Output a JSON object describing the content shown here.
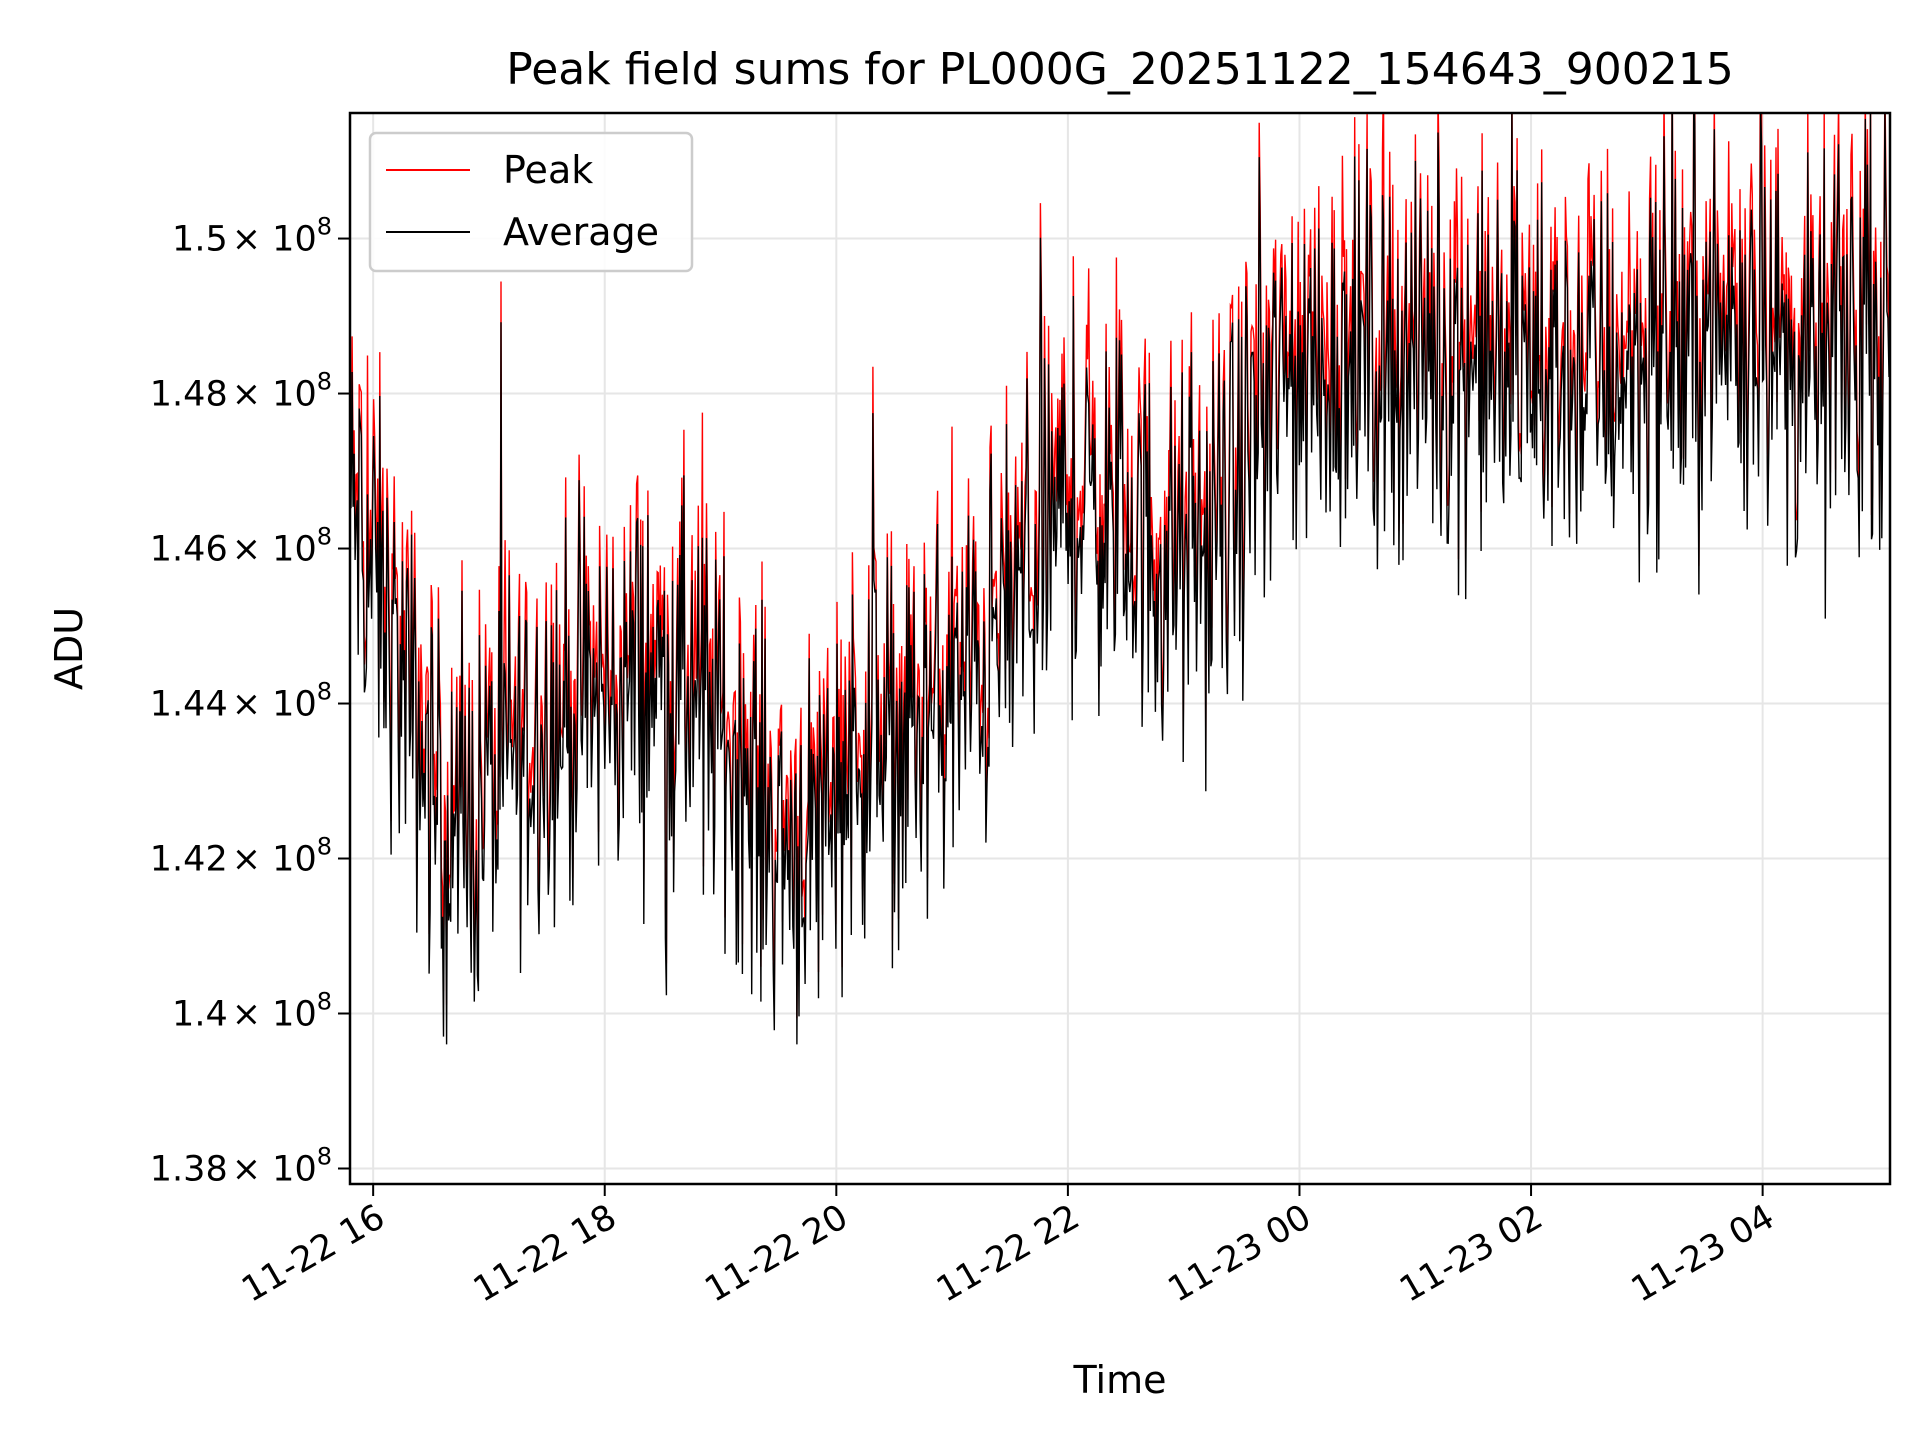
{
  "chart_data": {
    "type": "line",
    "title": "Peak field sums for PL000G_20251122_154643_900215",
    "xlabel": "Time",
    "ylabel": "ADU",
    "x_unit": "hours since 11-22 00:00",
    "xlim": [
      15.8,
      29.1
    ],
    "ylim": [
      137800000,
      151620000
    ],
    "x_ticks": [
      {
        "value": 16,
        "label": "11-22 16"
      },
      {
        "value": 18,
        "label": "11-22 18"
      },
      {
        "value": 20,
        "label": "11-22 20"
      },
      {
        "value": 22,
        "label": "11-22 22"
      },
      {
        "value": 24,
        "label": "11-23 00"
      },
      {
        "value": 26,
        "label": "11-23 02"
      },
      {
        "value": 28,
        "label": "11-23 04"
      }
    ],
    "y_ticks": [
      {
        "value": 138000000,
        "mantissa": "1.38",
        "exp": "8"
      },
      {
        "value": 140000000,
        "mantissa": "1.4",
        "exp": "8"
      },
      {
        "value": 142000000,
        "mantissa": "1.42",
        "exp": "8"
      },
      {
        "value": 144000000,
        "mantissa": "1.44",
        "exp": "8"
      },
      {
        "value": 146000000,
        "mantissa": "1.46",
        "exp": "8"
      },
      {
        "value": 148000000,
        "mantissa": "1.48",
        "exp": "8"
      },
      {
        "value": 150000000,
        "mantissa": "1.5",
        "exp": "8"
      }
    ],
    "tick_multiplier": "× 10",
    "grid": true,
    "legend_position": "top-left",
    "series": [
      {
        "name": "Peak",
        "color": "#ff0000",
        "x": [
          15.8,
          16.0,
          16.2,
          16.4,
          16.6,
          16.8,
          17.0,
          17.2,
          17.4,
          17.6,
          17.8,
          18.0,
          18.2,
          18.4,
          18.6,
          18.8,
          19.0,
          19.2,
          19.4,
          19.6,
          19.8,
          20.0,
          20.2,
          20.4,
          20.6,
          20.8,
          21.0,
          21.2,
          21.4,
          21.6,
          21.8,
          22.0,
          22.2,
          22.4,
          22.6,
          22.8,
          23.0,
          23.2,
          23.4,
          23.6,
          23.8,
          24.0,
          24.2,
          24.4,
          24.6,
          24.8,
          25.0,
          25.2,
          25.4,
          25.6,
          25.8,
          26.0,
          26.2,
          26.4,
          26.6,
          26.8,
          27.0,
          27.2,
          27.4,
          27.6,
          27.8,
          28.0,
          28.2,
          28.4,
          28.6,
          28.8,
          29.0,
          29.1
        ],
        "values": [
          146800000,
          145900000,
          144800000,
          143700000,
          142700000,
          142500000,
          143200000,
          143600000,
          143900000,
          144100000,
          144200000,
          144300000,
          144500000,
          144600000,
          144500000,
          144300000,
          143900000,
          143400000,
          142700000,
          142400000,
          142600000,
          143300000,
          143700000,
          143800000,
          143800000,
          144000000,
          144300000,
          144600000,
          145100000,
          145800000,
          146400000,
          146800000,
          146800000,
          146600000,
          146400000,
          146100000,
          146000000,
          146200000,
          146700000,
          147600000,
          148200000,
          148500000,
          148600000,
          148700000,
          148700000,
          148700000,
          148700000,
          148700000,
          148700000,
          148600000,
          148600000,
          148600000,
          148500000,
          148500000,
          148500000,
          148600000,
          148700000,
          148800000,
          148900000,
          149000000,
          149200000,
          149600000,
          148600000,
          148500000,
          148800000,
          149000000,
          149100000,
          149300000
        ]
      },
      {
        "name": "Average",
        "color": "#000000",
        "x": [
          15.8,
          16.0,
          16.2,
          16.4,
          16.6,
          16.8,
          17.0,
          17.2,
          17.4,
          17.6,
          17.8,
          18.0,
          18.2,
          18.4,
          18.6,
          18.8,
          19.0,
          19.2,
          19.4,
          19.6,
          19.8,
          20.0,
          20.2,
          20.4,
          20.6,
          20.8,
          21.0,
          21.2,
          21.4,
          21.6,
          21.8,
          22.0,
          22.2,
          22.4,
          22.6,
          22.8,
          23.0,
          23.2,
          23.4,
          23.6,
          23.8,
          24.0,
          24.2,
          24.4,
          24.6,
          24.8,
          25.0,
          25.2,
          25.4,
          25.6,
          25.8,
          26.0,
          26.2,
          26.4,
          26.6,
          26.8,
          27.0,
          27.2,
          27.4,
          27.6,
          27.8,
          28.0,
          28.2,
          28.4,
          28.6,
          28.8,
          29.0,
          29.1
        ],
        "values": [
          146500000,
          145600000,
          144500000,
          143400000,
          142400000,
          142200000,
          142900000,
          143300000,
          143600000,
          143800000,
          143900000,
          144000000,
          144200000,
          144300000,
          144200000,
          144000000,
          143600000,
          143100000,
          142400000,
          142100000,
          142300000,
          143000000,
          143400000,
          143500000,
          143500000,
          143700000,
          144000000,
          144300000,
          144800000,
          145500000,
          146100000,
          146500000,
          146500000,
          146300000,
          146100000,
          145800000,
          145700000,
          145900000,
          146400000,
          147300000,
          147900000,
          148200000,
          148300000,
          148400000,
          148400000,
          148400000,
          148400000,
          148400000,
          148400000,
          148300000,
          148300000,
          148300000,
          148200000,
          148200000,
          148200000,
          148300000,
          148400000,
          148500000,
          148600000,
          148700000,
          148900000,
          149300000,
          148300000,
          148200000,
          148500000,
          148700000,
          148800000,
          149000000
        ]
      }
    ]
  }
}
